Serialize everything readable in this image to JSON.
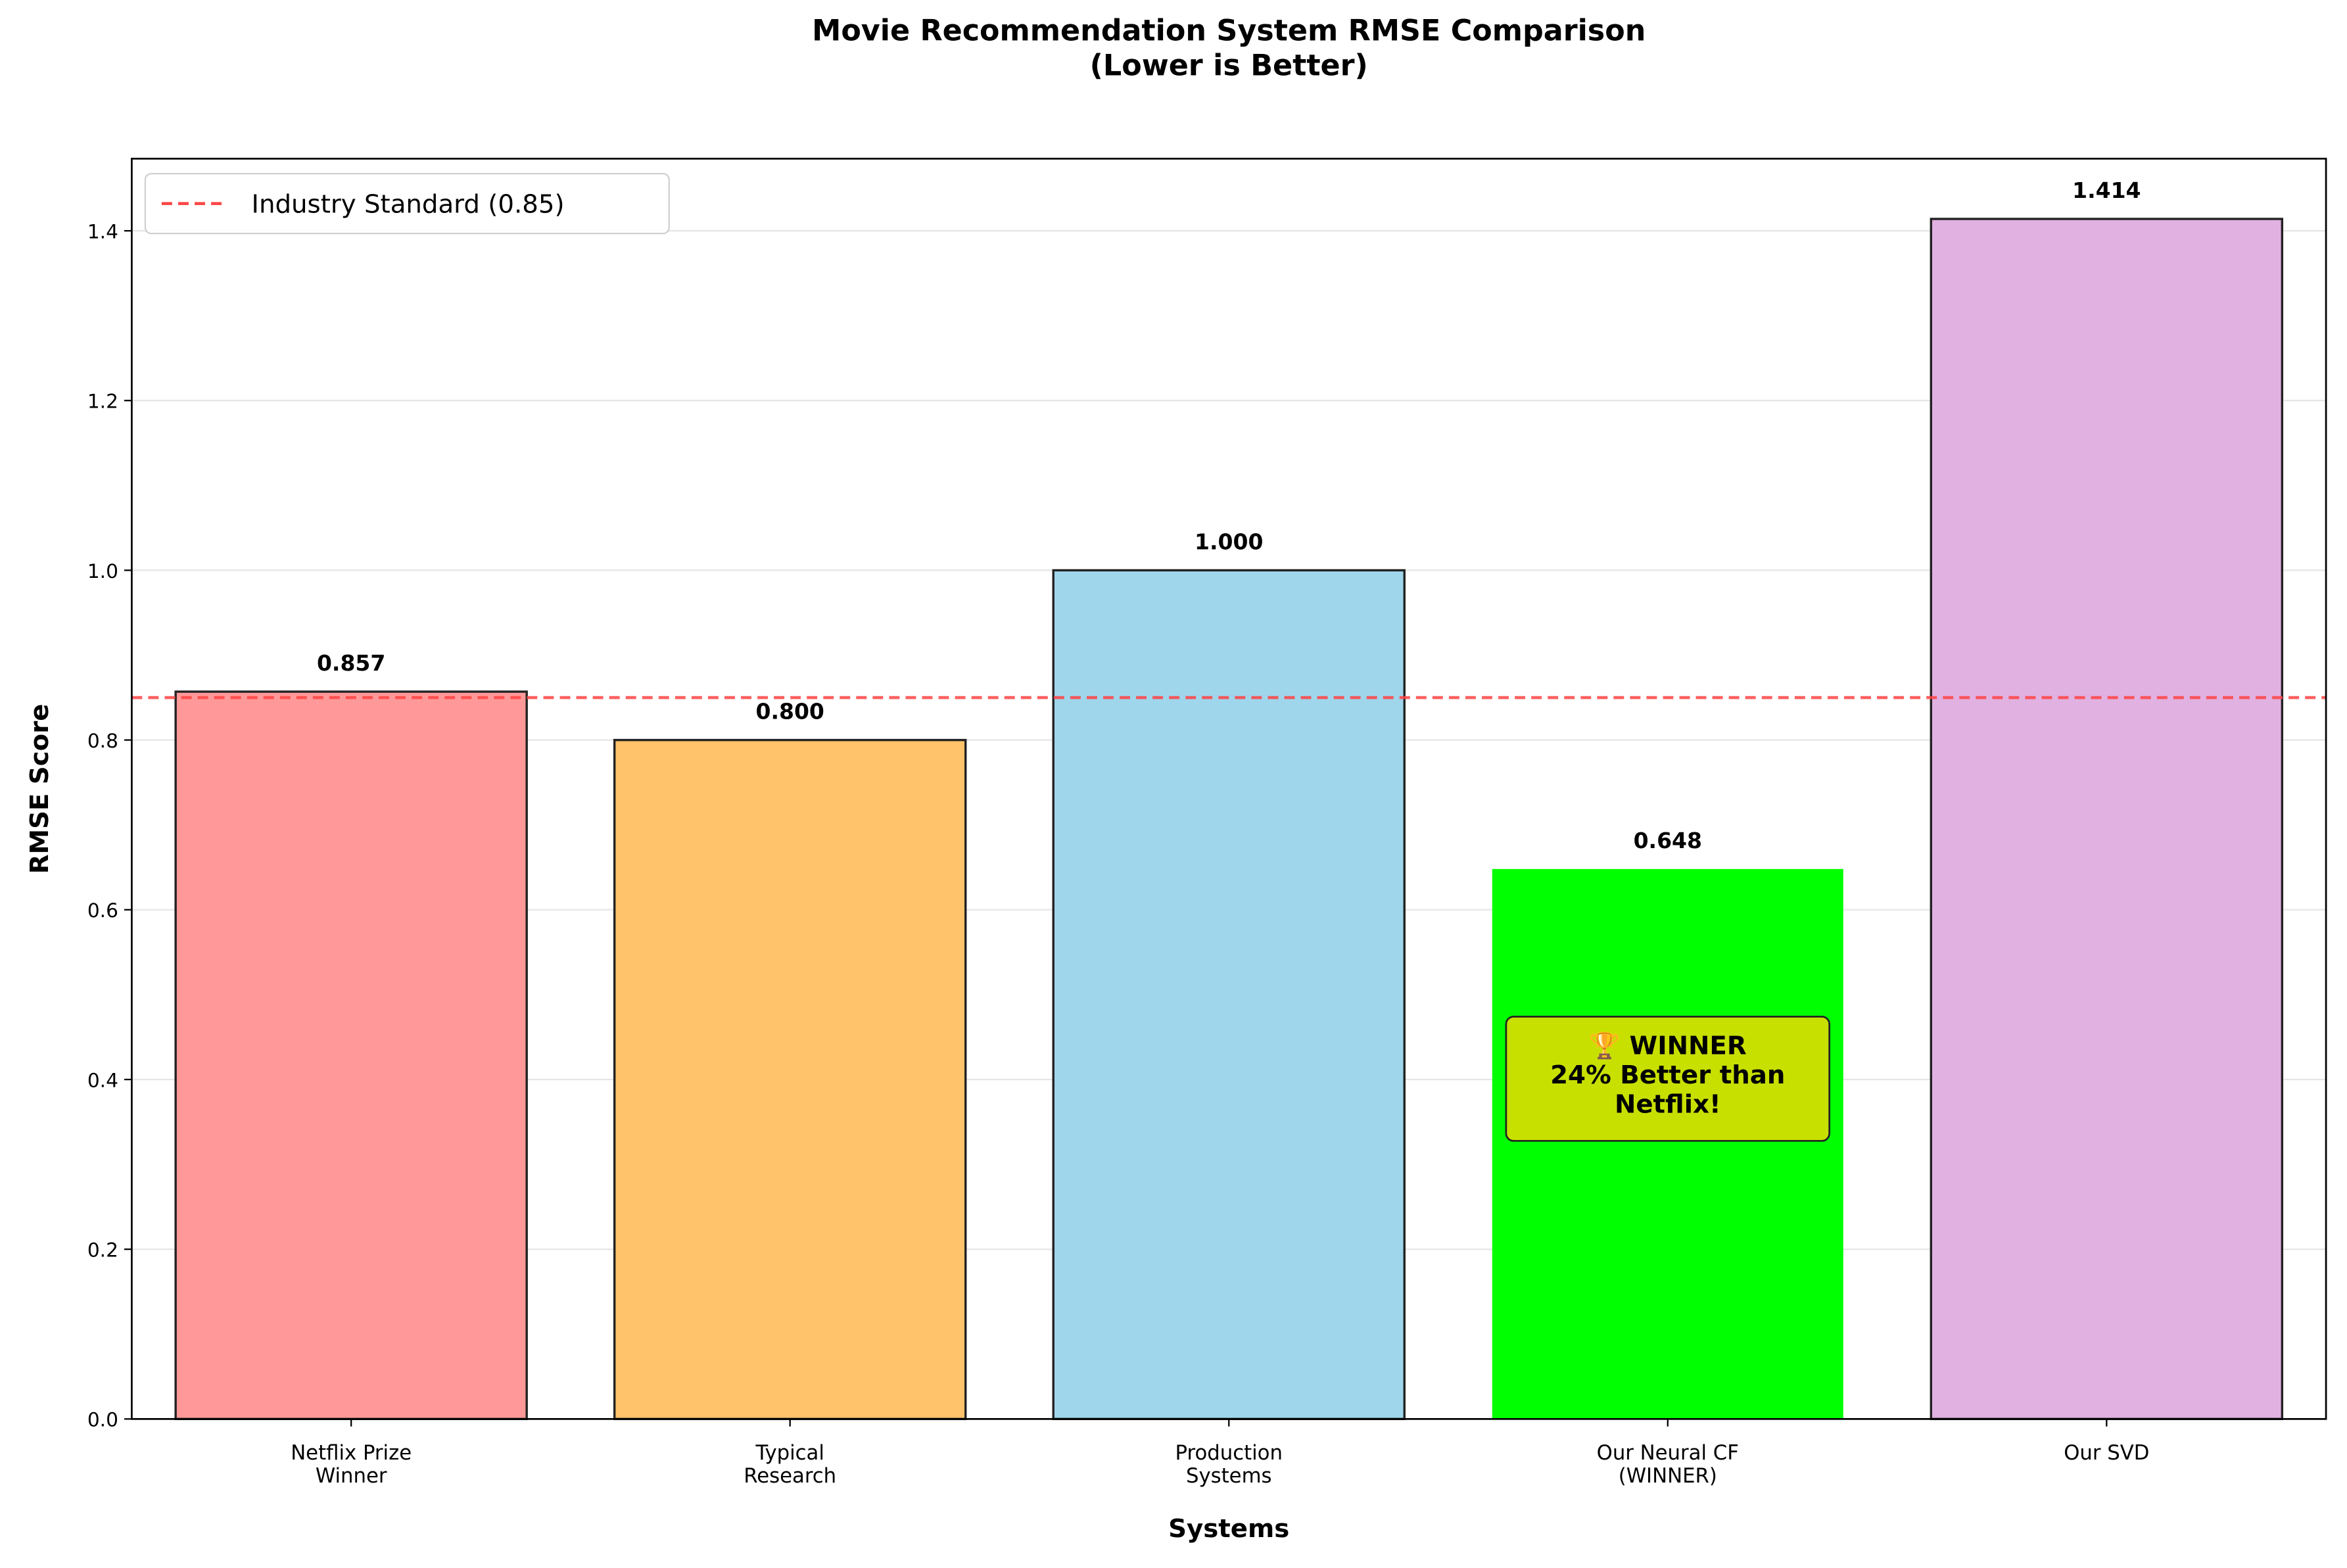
{
  "chart_data": {
    "type": "bar",
    "title": "Movie Recommendation System RMSE Comparison\n(Lower is Better)",
    "xlabel": "Systems",
    "ylabel": "RMSE Score",
    "categories": [
      "Netflix Prize\nWinner",
      "Typical\nResearch",
      "Production\nSystems",
      "Our Neural CF\n(WINNER)",
      "Our SVD"
    ],
    "values": [
      0.857,
      0.8,
      1.0,
      0.648,
      1.414
    ],
    "value_labels": [
      "0.857",
      "0.800",
      "1.000",
      "0.648",
      "1.414"
    ],
    "colors": [
      "#ff9999",
      "#ffc36b",
      "#9fd6ec",
      "#00ff00",
      "#e1b1e1"
    ],
    "edge_colors": [
      "#222222",
      "#222222",
      "#222222",
      null,
      "#222222"
    ],
    "ylim": [
      0,
      1.485
    ],
    "yticks": [
      {
        "value": 0,
        "label": "0.0"
      },
      0.2,
      0.4,
      0.6,
      0.8,
      {
        "value": 1,
        "label": "1.0"
      },
      1.2,
      1.4
    ],
    "grid": true,
    "reference_line": {
      "value": 0.85,
      "label": "Industry Standard (0.85)",
      "color": "#ff4444"
    },
    "legend": "upper left",
    "annotation": {
      "text": "🏆 WINNER\n24% Better than\nNetflix!",
      "category": 3,
      "y": 0.4,
      "color": "#c8e000"
    }
  }
}
